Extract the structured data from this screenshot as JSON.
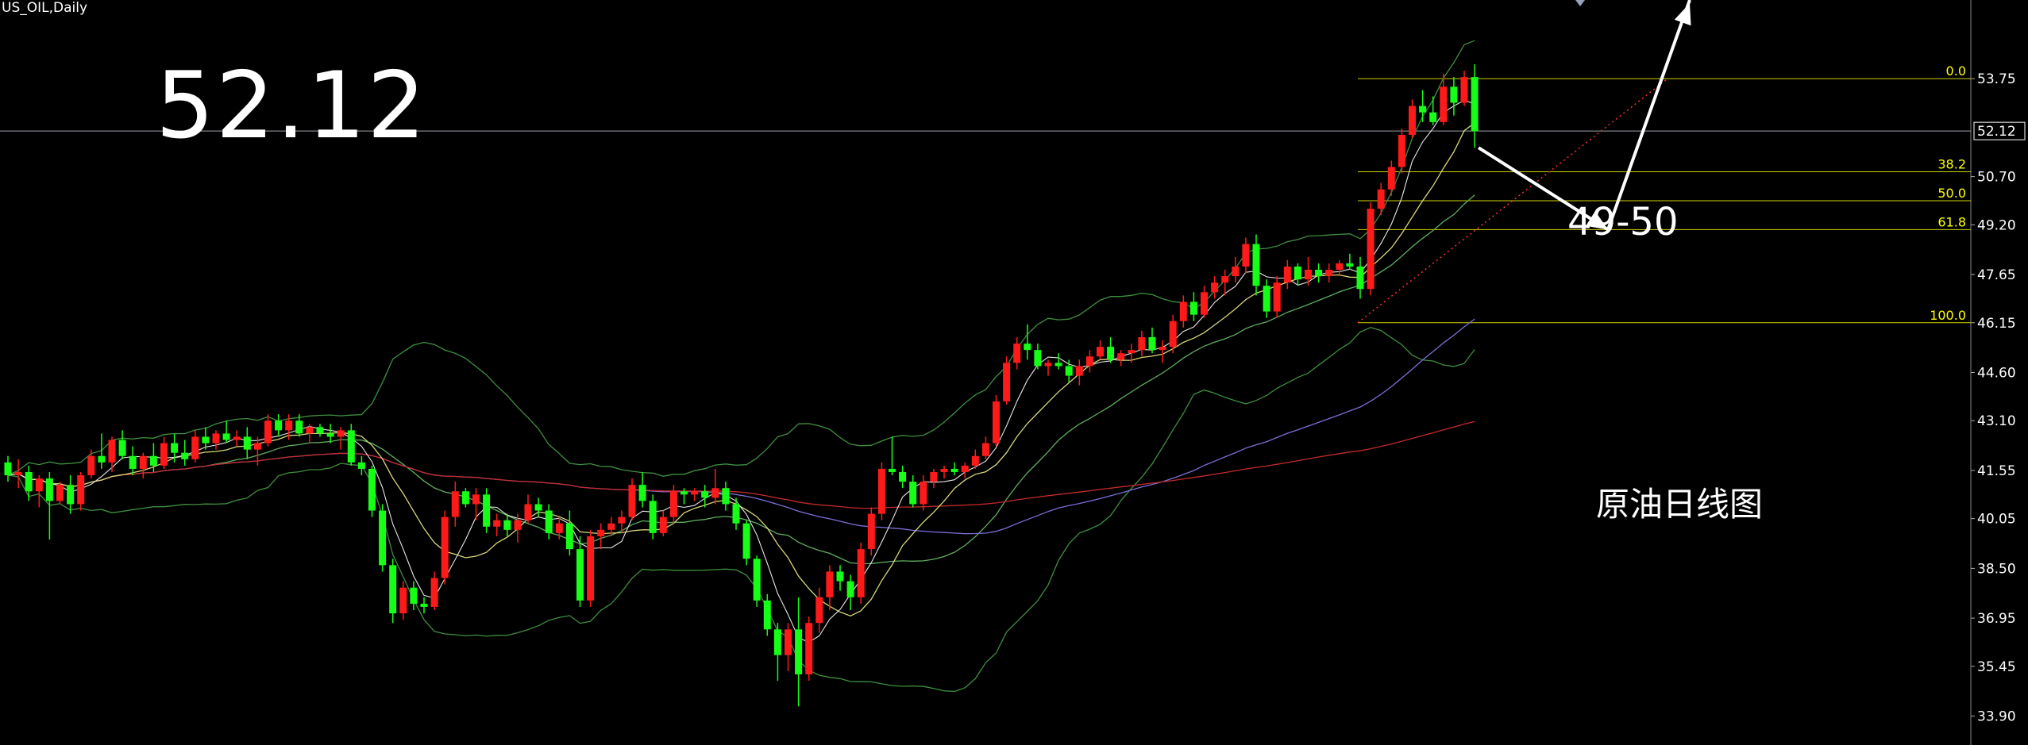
{
  "symbol_label": "US_OIL,Daily",
  "current_price": "52.12",
  "target_note": "49-50",
  "caption": "原油日线图",
  "chart_data": {
    "type": "candlestick",
    "symbol": "US_OIL",
    "timeframe": "Daily",
    "ylim": [
      33.0,
      56.2
    ],
    "y_ticks": [
      "53.75",
      "52.12",
      "50.70",
      "49.20",
      "47.65",
      "46.15",
      "44.60",
      "43.10",
      "41.55",
      "40.05",
      "38.50",
      "36.95",
      "35.45",
      "33.90"
    ],
    "current_price": 52.12,
    "colors": {
      "up": "#ff1a1a",
      "down": "#16ff16",
      "background": "#000000",
      "axis_text": "#ffffff",
      "fib": "#ffff00"
    },
    "fibonacci": {
      "high": 53.75,
      "low": 46.15,
      "levels": [
        {
          "label": "0.0",
          "price": 53.75
        },
        {
          "label": "38.2",
          "price": 50.85
        },
        {
          "label": "50.0",
          "price": 49.95
        },
        {
          "label": "61.8",
          "price": 49.05
        },
        {
          "label": "100.0",
          "price": 46.15
        }
      ]
    },
    "candles": [
      [
        41.8,
        42.0,
        41.2,
        41.4
      ],
      [
        41.4,
        41.9,
        41.0,
        41.5
      ],
      [
        41.5,
        41.7,
        40.6,
        40.9
      ],
      [
        40.9,
        41.4,
        40.4,
        41.3
      ],
      [
        41.3,
        41.5,
        39.4,
        40.6
      ],
      [
        40.6,
        41.2,
        40.5,
        41.1
      ],
      [
        41.1,
        41.4,
        40.2,
        40.5
      ],
      [
        40.5,
        41.5,
        40.3,
        41.4
      ],
      [
        41.4,
        42.2,
        41.3,
        42.0
      ],
      [
        42.0,
        42.7,
        41.6,
        41.8
      ],
      [
        41.8,
        42.6,
        41.5,
        42.5
      ],
      [
        42.5,
        42.8,
        41.9,
        42.0
      ],
      [
        42.0,
        42.3,
        41.4,
        41.6
      ],
      [
        41.6,
        42.1,
        41.3,
        42.0
      ],
      [
        42.0,
        42.4,
        41.5,
        41.7
      ],
      [
        41.7,
        42.6,
        41.6,
        42.4
      ],
      [
        42.4,
        42.7,
        41.8,
        42.1
      ],
      [
        42.1,
        42.5,
        41.7,
        41.9
      ],
      [
        41.9,
        42.8,
        41.8,
        42.6
      ],
      [
        42.6,
        42.9,
        42.2,
        42.4
      ],
      [
        42.4,
        42.8,
        42.2,
        42.7
      ],
      [
        42.7,
        43.1,
        42.4,
        42.5
      ],
      [
        42.5,
        42.8,
        42.3,
        42.6
      ],
      [
        42.6,
        42.9,
        41.9,
        42.2
      ],
      [
        42.2,
        42.6,
        41.7,
        42.4
      ],
      [
        42.4,
        43.3,
        42.3,
        43.1
      ],
      [
        43.1,
        43.3,
        42.6,
        42.8
      ],
      [
        42.8,
        43.3,
        42.5,
        43.1
      ],
      [
        43.1,
        43.3,
        42.6,
        42.7
      ],
      [
        42.7,
        43.0,
        42.4,
        42.9
      ],
      [
        42.9,
        43.0,
        42.6,
        42.7
      ],
      [
        42.7,
        43.0,
        42.4,
        42.6
      ],
      [
        42.6,
        42.9,
        42.2,
        42.8
      ],
      [
        42.8,
        43.0,
        41.7,
        41.8
      ],
      [
        41.8,
        42.0,
        41.4,
        41.6
      ],
      [
        41.6,
        41.7,
        40.1,
        40.3
      ],
      [
        40.3,
        40.5,
        38.4,
        38.6
      ],
      [
        38.6,
        38.8,
        36.8,
        37.1
      ],
      [
        37.1,
        38.1,
        36.9,
        37.9
      ],
      [
        37.9,
        38.1,
        37.2,
        37.4
      ],
      [
        37.4,
        37.6,
        37.1,
        37.3
      ],
      [
        37.3,
        38.4,
        37.2,
        38.2
      ],
      [
        38.2,
        40.3,
        38.0,
        40.1
      ],
      [
        40.1,
        41.2,
        39.8,
        40.9
      ],
      [
        40.9,
        41.0,
        40.4,
        40.5
      ],
      [
        40.5,
        41.0,
        40.0,
        40.8
      ],
      [
        40.8,
        41.0,
        39.6,
        39.8
      ],
      [
        39.8,
        40.2,
        39.5,
        40.0
      ],
      [
        40.0,
        40.2,
        39.5,
        39.7
      ],
      [
        39.7,
        40.2,
        39.3,
        40.0
      ],
      [
        40.0,
        40.8,
        39.9,
        40.5
      ],
      [
        40.5,
        40.7,
        40.1,
        40.3
      ],
      [
        40.3,
        40.5,
        39.4,
        39.6
      ],
      [
        39.6,
        40.1,
        39.4,
        39.9
      ],
      [
        39.9,
        40.3,
        38.9,
        39.1
      ],
      [
        39.1,
        39.5,
        37.3,
        37.5
      ],
      [
        37.5,
        39.7,
        37.3,
        39.5
      ],
      [
        39.5,
        39.9,
        39.1,
        39.7
      ],
      [
        39.7,
        40.1,
        39.5,
        39.9
      ],
      [
        39.9,
        40.3,
        39.6,
        40.1
      ],
      [
        40.1,
        41.3,
        40.0,
        41.1
      ],
      [
        41.1,
        41.5,
        40.4,
        40.6
      ],
      [
        40.6,
        40.8,
        39.4,
        39.6
      ],
      [
        39.6,
        40.3,
        39.5,
        40.1
      ],
      [
        40.1,
        41.1,
        39.9,
        40.9
      ],
      [
        40.9,
        41.0,
        40.5,
        40.8
      ],
      [
        40.8,
        41.0,
        40.6,
        40.9
      ],
      [
        40.9,
        41.1,
        40.4,
        40.7
      ],
      [
        40.7,
        41.6,
        40.5,
        41.0
      ],
      [
        41.0,
        41.2,
        40.3,
        40.5
      ],
      [
        40.5,
        40.7,
        39.7,
        39.9
      ],
      [
        39.9,
        40.0,
        38.6,
        38.8
      ],
      [
        38.8,
        38.9,
        37.3,
        37.5
      ],
      [
        37.5,
        37.7,
        36.4,
        36.6
      ],
      [
        36.6,
        36.8,
        35.0,
        35.8
      ],
      [
        35.8,
        36.8,
        35.3,
        36.6
      ],
      [
        36.6,
        37.6,
        34.2,
        35.2
      ],
      [
        35.2,
        37.0,
        35.0,
        36.8
      ],
      [
        36.8,
        37.9,
        36.5,
        37.6
      ],
      [
        37.6,
        38.6,
        37.2,
        38.4
      ],
      [
        38.4,
        38.6,
        37.8,
        38.1
      ],
      [
        38.1,
        38.3,
        37.2,
        37.6
      ],
      [
        37.6,
        39.3,
        37.4,
        39.1
      ],
      [
        39.1,
        40.4,
        38.9,
        40.2
      ],
      [
        40.2,
        41.8,
        40.0,
        41.6
      ],
      [
        41.6,
        42.6,
        41.4,
        41.5
      ],
      [
        41.5,
        41.7,
        41.0,
        41.2
      ],
      [
        41.2,
        41.4,
        40.4,
        40.5
      ],
      [
        40.5,
        41.4,
        40.3,
        41.2
      ],
      [
        41.2,
        41.6,
        41.0,
        41.5
      ],
      [
        41.5,
        41.7,
        41.3,
        41.6
      ],
      [
        41.6,
        41.8,
        41.4,
        41.5
      ],
      [
        41.5,
        41.8,
        41.3,
        41.7
      ],
      [
        41.7,
        42.2,
        41.6,
        42.0
      ],
      [
        42.0,
        42.6,
        41.9,
        42.4
      ],
      [
        42.4,
        43.9,
        42.3,
        43.7
      ],
      [
        43.7,
        45.1,
        43.6,
        44.9
      ],
      [
        44.9,
        45.7,
        44.7,
        45.5
      ],
      [
        45.5,
        46.1,
        45.0,
        45.3
      ],
      [
        45.3,
        45.5,
        44.7,
        44.8
      ],
      [
        44.8,
        45.0,
        44.5,
        44.9
      ],
      [
        44.9,
        45.2,
        44.7,
        44.8
      ],
      [
        44.8,
        45.0,
        44.3,
        44.5
      ],
      [
        44.5,
        45.0,
        44.2,
        44.8
      ],
      [
        44.8,
        45.3,
        44.6,
        45.1
      ],
      [
        45.1,
        45.6,
        45.0,
        45.4
      ],
      [
        45.4,
        45.7,
        44.9,
        45.0
      ],
      [
        45.0,
        45.3,
        44.8,
        45.2
      ],
      [
        45.2,
        45.5,
        44.9,
        45.3
      ],
      [
        45.3,
        45.9,
        45.1,
        45.7
      ],
      [
        45.7,
        46.0,
        45.2,
        45.3
      ],
      [
        45.3,
        45.6,
        44.9,
        45.4
      ],
      [
        45.4,
        46.4,
        45.2,
        46.2
      ],
      [
        46.2,
        47.0,
        46.0,
        46.8
      ],
      [
        46.8,
        47.1,
        46.2,
        46.4
      ],
      [
        46.4,
        47.3,
        46.3,
        47.1
      ],
      [
        47.1,
        47.6,
        46.9,
        47.4
      ],
      [
        47.4,
        47.8,
        47.0,
        47.6
      ],
      [
        47.6,
        48.2,
        47.4,
        47.9
      ],
      [
        47.9,
        48.8,
        47.7,
        48.6
      ],
      [
        48.6,
        48.9,
        47.0,
        47.3
      ],
      [
        47.3,
        47.5,
        46.3,
        46.5
      ],
      [
        46.5,
        47.6,
        46.3,
        47.4
      ],
      [
        47.4,
        48.1,
        47.2,
        47.9
      ],
      [
        47.9,
        48.0,
        47.3,
        47.5
      ],
      [
        47.5,
        48.2,
        47.3,
        47.8
      ],
      [
        47.8,
        48.0,
        47.4,
        47.6
      ],
      [
        47.6,
        48.0,
        47.4,
        47.8
      ],
      [
        47.8,
        48.1,
        47.6,
        48.0
      ],
      [
        48.0,
        48.3,
        47.8,
        47.9
      ],
      [
        47.9,
        48.2,
        46.9,
        47.2
      ],
      [
        47.2,
        49.9,
        47.0,
        49.7
      ],
      [
        49.7,
        50.5,
        49.5,
        50.3
      ],
      [
        50.3,
        51.2,
        50.1,
        51.0
      ],
      [
        51.0,
        52.2,
        50.8,
        52.0
      ],
      [
        52.0,
        53.1,
        51.9,
        52.9
      ],
      [
        52.9,
        53.4,
        52.4,
        52.7
      ],
      [
        52.7,
        53.2,
        52.3,
        52.4
      ],
      [
        52.4,
        53.9,
        52.3,
        53.5
      ],
      [
        53.5,
        53.8,
        52.6,
        53.0
      ],
      [
        53.0,
        54.0,
        52.9,
        53.8
      ],
      [
        53.8,
        54.2,
        51.6,
        52.12
      ]
    ]
  }
}
